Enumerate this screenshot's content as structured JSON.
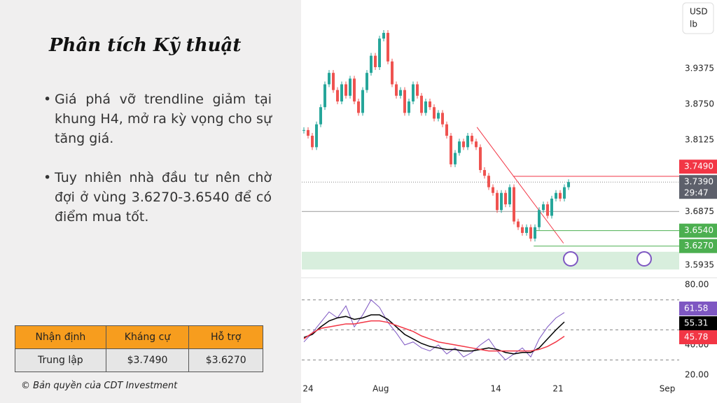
{
  "header": {
    "title": "Phân tích Kỹ thuật"
  },
  "bullets": [
    "Giá phá vỡ trendline giảm tại khung H4, mở ra kỳ vọng cho sự tăng giá.",
    "Tuy nhiên nhà đầu tư nên chờ đợi ở vùng 3.6270-3.6540 để có điểm mua tốt."
  ],
  "table": {
    "header": [
      "Nhận định",
      "Kháng cự",
      "Hỗ trợ"
    ],
    "rows": [
      [
        "Trung lập",
        "$3.7490",
        "$3.6270"
      ]
    ]
  },
  "copyright": "© Bản quyền của CDT Investment",
  "unit": [
    "USD",
    "lb"
  ],
  "chart_data": [
    {
      "type": "candlestick",
      "up_color": "#26a69a",
      "down_color": "#ef5350",
      "values": [
        3.83,
        3.82,
        3.8,
        3.84,
        3.87,
        3.91,
        3.93,
        3.9,
        3.88,
        3.91,
        3.89,
        3.92,
        3.88,
        3.86,
        3.9,
        3.93,
        3.96,
        3.94,
        3.99,
        4.0,
        3.95,
        3.91,
        3.89,
        3.9,
        3.86,
        3.88,
        3.91,
        3.89,
        3.86,
        3.88,
        3.87,
        3.85,
        3.86,
        3.84,
        3.82,
        3.77,
        3.79,
        3.81,
        3.8,
        3.82,
        3.81,
        3.8,
        3.76,
        3.75,
        3.73,
        3.72,
        3.69,
        3.72,
        3.7,
        3.73,
        3.67,
        3.66,
        3.65,
        3.66,
        3.64,
        3.66,
        3.69,
        3.7,
        3.68,
        3.71,
        3.72,
        3.71,
        3.73,
        3.739
      ],
      "xlim": [
        -0.5,
        89.5
      ],
      "ylim": [
        3.574,
        4.0575
      ],
      "xticks": [
        {
          "value": 1,
          "label": "24"
        },
        {
          "value": 18.3,
          "label": "Aug"
        },
        {
          "value": 45.7,
          "label": "14"
        },
        {
          "value": 60.5,
          "label": "21"
        },
        {
          "value": 86.5,
          "label": "Sep"
        }
      ],
      "yticks": [
        3.9375,
        {
          "value": 3.875,
          "label": "3.8750"
        },
        3.8125,
        3.6875,
        3.5935
      ],
      "hlines": [
        3.6875
      ],
      "last_price": {
        "value": 3.739,
        "label": "3.7390",
        "countdown": "29:47"
      },
      "levels": [
        {
          "value": 3.749,
          "label": "3.7490",
          "color": "#f23645",
          "from": 49.8
        },
        {
          "value": 3.654,
          "label": "3.6540",
          "color": "#4caf50",
          "from": 54.7
        },
        {
          "value": 3.627,
          "label": "3.6270",
          "color": "#4caf50",
          "from": 54.7
        }
      ],
      "trendline": {
        "x": [
          41.2,
          61.8
        ],
        "y": [
          3.835,
          3.632
        ],
        "color": "#f23645"
      },
      "zone": {
        "y": [
          3.586,
          3.617
        ],
        "color": "#d8eedd"
      }
    },
    {
      "type": "line",
      "xlim": [
        -0.5,
        89.5
      ],
      "ylim": [
        15.8,
        83.3
      ],
      "yticks": [
        {
          "value": 80,
          "label": "80.00"
        },
        {
          "value": 40,
          "label": "40.00"
        },
        {
          "value": 20,
          "label": "20.00"
        }
      ],
      "hlines": [
        70,
        50,
        30
      ],
      "x": [
        0,
        2,
        4,
        6,
        8,
        10,
        12,
        14,
        16,
        18,
        20,
        22,
        24,
        26,
        28,
        30,
        32,
        34,
        36,
        38,
        40,
        42,
        44,
        46,
        48,
        50,
        52,
        54,
        56,
        58,
        60,
        62
      ],
      "series": [
        {
          "color": "#7e57c2",
          "values": [
            42,
            48,
            55,
            62,
            58,
            66,
            52,
            60,
            70,
            65,
            55,
            48,
            40,
            42,
            38,
            36,
            40,
            34,
            38,
            32,
            35,
            40,
            44,
            36,
            30,
            34,
            38,
            32,
            44,
            52,
            58,
            61.58
          ]
        },
        {
          "color": "#000000",
          "values": [
            45,
            47,
            52,
            56,
            58,
            59,
            57,
            58,
            60,
            60,
            57,
            52,
            47,
            44,
            41,
            39,
            38,
            37,
            37,
            36,
            36,
            37,
            38,
            37,
            35,
            34,
            35,
            35,
            38,
            44,
            50,
            55.31
          ]
        },
        {
          "color": "#f23645",
          "values": [
            44,
            48,
            51,
            52,
            53,
            54,
            54,
            55,
            56,
            56,
            55,
            53,
            51,
            49,
            46,
            44,
            42,
            41,
            40,
            39,
            38,
            37,
            36,
            36,
            36,
            36,
            36,
            36,
            37,
            39,
            42,
            45.78
          ]
        }
      ]
    }
  ]
}
